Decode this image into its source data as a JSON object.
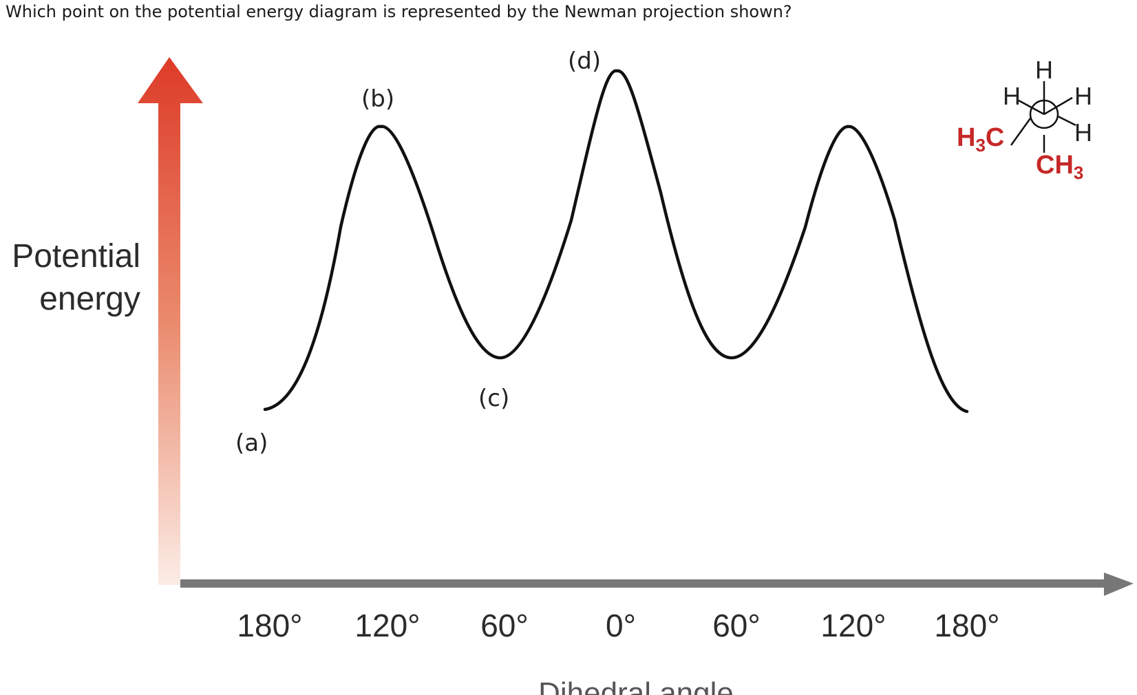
{
  "question": "Which point on the potential energy diagram is represented by the Newman projection shown?",
  "diagram": {
    "y_axis_label_line1": "Potential",
    "y_axis_label_line2": "energy",
    "x_axis_label": "Dihedral angle",
    "x_ticks": [
      "180°",
      "120°",
      "60°",
      "0°",
      "60°",
      "120°",
      "180°"
    ],
    "point_labels": {
      "a": "(a)",
      "b": "(b)",
      "c": "(c)",
      "d": "(d)"
    },
    "curve": {
      "description_points": [
        {
          "angle": "180°",
          "relative_energy": 0.0
        },
        {
          "angle": "120°",
          "relative_energy": 0.83
        },
        {
          "angle": "60°",
          "relative_energy": 0.15
        },
        {
          "angle": "0°",
          "relative_energy": 1.0
        },
        {
          "angle": "60°",
          "relative_energy": 0.15
        },
        {
          "angle": "120°",
          "relative_energy": 0.83
        },
        {
          "angle": "180°",
          "relative_energy": 0.0
        }
      ]
    },
    "colors": {
      "arrow_top": "#dd3b28",
      "arrow_bottom": "#fbe9e3",
      "x_axis": "#777777",
      "curve": "#111111",
      "methyl_red": "#c62828"
    }
  },
  "newman": {
    "front_top": "H",
    "front_left": "H",
    "front_right": "H",
    "back_left": "H",
    "back_right": "H",
    "back_bottom_main": "CH",
    "back_bottom_sub": "3",
    "left_methyl_main": "H",
    "left_methyl_sub": "3",
    "left_methyl_tail": "C"
  }
}
